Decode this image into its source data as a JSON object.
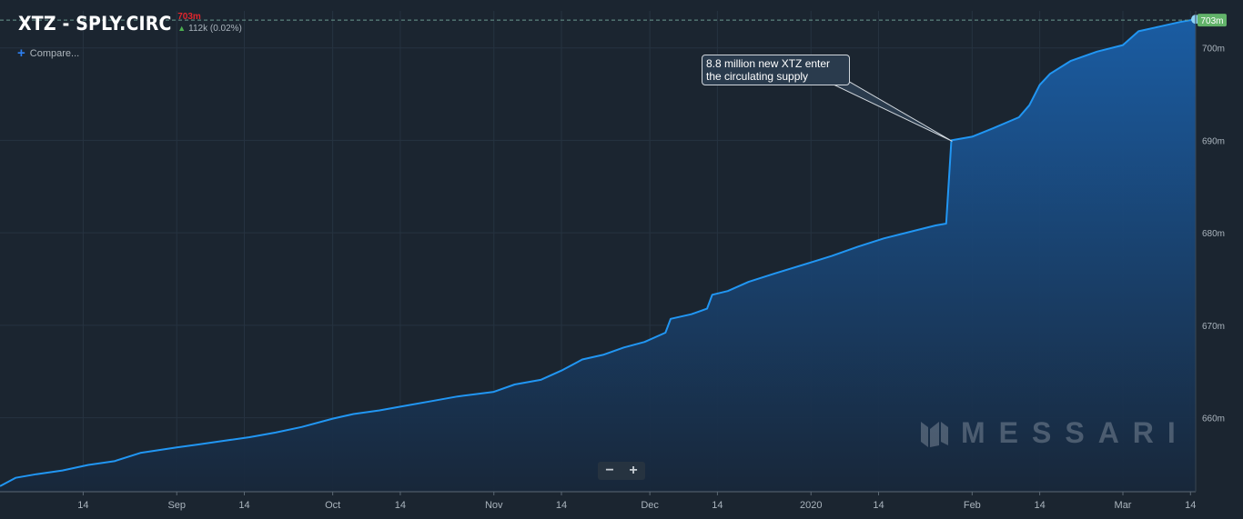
{
  "header": {
    "title": "XTZ - SPLY.CIRC",
    "last_value": "703m",
    "change": "112k (0.02%)"
  },
  "compare_label": "Compare...",
  "zoom": {
    "minus": "−",
    "plus": "+"
  },
  "watermark": "MESSARI",
  "annotation": "8.8 million new XTZ enter the circulating supply",
  "last_value_badge": "703m",
  "colors": {
    "background": "#1b2530",
    "line": "#2196f3",
    "area_top": "#1a5fa8",
    "area_bottom": "#18273a",
    "last_value_red": "#e0262d",
    "badge_green": "#62b36a",
    "grid": "#263340"
  },
  "chart_data": {
    "type": "area",
    "title": "XTZ - SPLY.CIRC",
    "xlabel": "",
    "ylabel": "",
    "x_range": [
      "2019-07-29",
      "2020-03-15"
    ],
    "ylim": [
      652,
      704
    ],
    "y_unit": "m",
    "y_ticks": [
      660,
      670,
      680,
      690,
      700
    ],
    "x_ticks": [
      {
        "date": "2019-08-14",
        "label": "14"
      },
      {
        "date": "2019-09-01",
        "label": "Sep"
      },
      {
        "date": "2019-09-14",
        "label": "14"
      },
      {
        "date": "2019-10-01",
        "label": "Oct"
      },
      {
        "date": "2019-10-14",
        "label": "14"
      },
      {
        "date": "2019-11-01",
        "label": "Nov"
      },
      {
        "date": "2019-11-14",
        "label": "14"
      },
      {
        "date": "2019-12-01",
        "label": "Dec"
      },
      {
        "date": "2019-12-14",
        "label": "14"
      },
      {
        "date": "2020-01-01",
        "label": "2020"
      },
      {
        "date": "2020-01-14",
        "label": "14"
      },
      {
        "date": "2020-02-01",
        "label": "Feb"
      },
      {
        "date": "2020-02-14",
        "label": "14"
      },
      {
        "date": "2020-03-01",
        "label": "Mar"
      },
      {
        "date": "2020-03-14",
        "label": "14"
      }
    ],
    "grid": true,
    "legend": "none",
    "last_value": 703,
    "series": [
      {
        "points": [
          [
            "2019-07-29",
            652.6
          ],
          [
            "2019-08-01",
            653.5
          ],
          [
            "2019-08-05",
            653.9
          ],
          [
            "2019-08-10",
            654.3
          ],
          [
            "2019-08-15",
            654.9
          ],
          [
            "2019-08-20",
            655.3
          ],
          [
            "2019-08-25",
            656.2
          ],
          [
            "2019-09-01",
            656.8
          ],
          [
            "2019-09-05",
            657.1
          ],
          [
            "2019-09-10",
            657.5
          ],
          [
            "2019-09-15",
            657.9
          ],
          [
            "2019-09-20",
            658.4
          ],
          [
            "2019-09-25",
            659.0
          ],
          [
            "2019-10-01",
            659.9
          ],
          [
            "2019-10-05",
            660.4
          ],
          [
            "2019-10-10",
            660.8
          ],
          [
            "2019-10-15",
            661.3
          ],
          [
            "2019-10-20",
            661.8
          ],
          [
            "2019-10-25",
            662.3
          ],
          [
            "2019-11-01",
            662.8
          ],
          [
            "2019-11-05",
            663.6
          ],
          [
            "2019-11-10",
            664.1
          ],
          [
            "2019-11-14",
            665.1
          ],
          [
            "2019-11-18",
            666.3
          ],
          [
            "2019-11-22",
            666.8
          ],
          [
            "2019-11-26",
            667.6
          ],
          [
            "2019-11-30",
            668.2
          ],
          [
            "2019-12-04",
            669.2
          ],
          [
            "2019-12-05",
            670.7
          ],
          [
            "2019-12-09",
            671.2
          ],
          [
            "2019-12-12",
            671.8
          ],
          [
            "2019-12-13",
            673.3
          ],
          [
            "2019-12-16",
            673.7
          ],
          [
            "2019-12-20",
            674.7
          ],
          [
            "2019-12-25",
            675.6
          ],
          [
            "2020-01-01",
            676.8
          ],
          [
            "2020-01-05",
            677.5
          ],
          [
            "2020-01-10",
            678.5
          ],
          [
            "2020-01-15",
            679.4
          ],
          [
            "2020-01-20",
            680.1
          ],
          [
            "2020-01-25",
            680.8
          ],
          [
            "2020-01-27",
            681.0
          ],
          [
            "2020-01-28",
            690.0
          ],
          [
            "2020-02-01",
            690.4
          ],
          [
            "2020-02-05",
            691.3
          ],
          [
            "2020-02-10",
            692.5
          ],
          [
            "2020-02-12",
            693.8
          ],
          [
            "2020-02-14",
            696.0
          ],
          [
            "2020-02-16",
            697.2
          ],
          [
            "2020-02-20",
            698.6
          ],
          [
            "2020-02-25",
            699.6
          ],
          [
            "2020-03-01",
            700.3
          ],
          [
            "2020-03-04",
            701.8
          ],
          [
            "2020-03-08",
            702.3
          ],
          [
            "2020-03-12",
            702.8
          ],
          [
            "2020-03-15",
            703.1
          ]
        ]
      }
    ]
  }
}
